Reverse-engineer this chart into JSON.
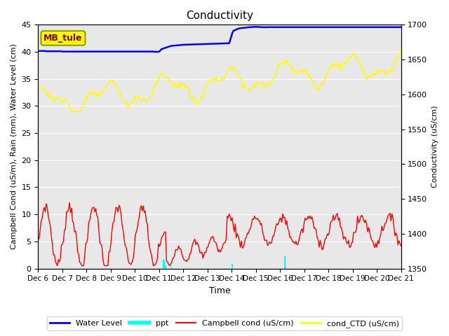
{
  "title": "Conductivity",
  "xlabel": "Time",
  "ylabel_left": "Campbell Cond (uS/m), Rain (mm), Water Level (cm)",
  "ylabel_right": "Conductivity (uS/cm)",
  "ylim_left": [
    0,
    45
  ],
  "ylim_right": [
    1350,
    1700
  ],
  "background_color": "#e8e8e8",
  "annotation_text": "MB_tule",
  "annotation_box_facecolor": "yellow",
  "annotation_box_edgecolor": "#999900",
  "x_tick_labels": [
    "Dec 6",
    "Dec 7",
    "Dec 8",
    "Dec 9",
    "Dec 10",
    "Dec 11",
    "Dec 12",
    "Dec 13",
    "Dec 14",
    "Dec 15",
    "Dec 16",
    "Dec 17",
    "Dec 18",
    "Dec 19",
    "Dec 20",
    "Dec 21"
  ],
  "legend_labels": [
    "Water Level",
    "ppt",
    "Campbell cond (uS/cm)",
    "cond_CTD (uS/cm)"
  ],
  "yticks_left": [
    0,
    5,
    10,
    15,
    20,
    25,
    30,
    35,
    40,
    45
  ],
  "yticks_right": [
    1350,
    1400,
    1450,
    1500,
    1550,
    1600,
    1650,
    1700
  ]
}
